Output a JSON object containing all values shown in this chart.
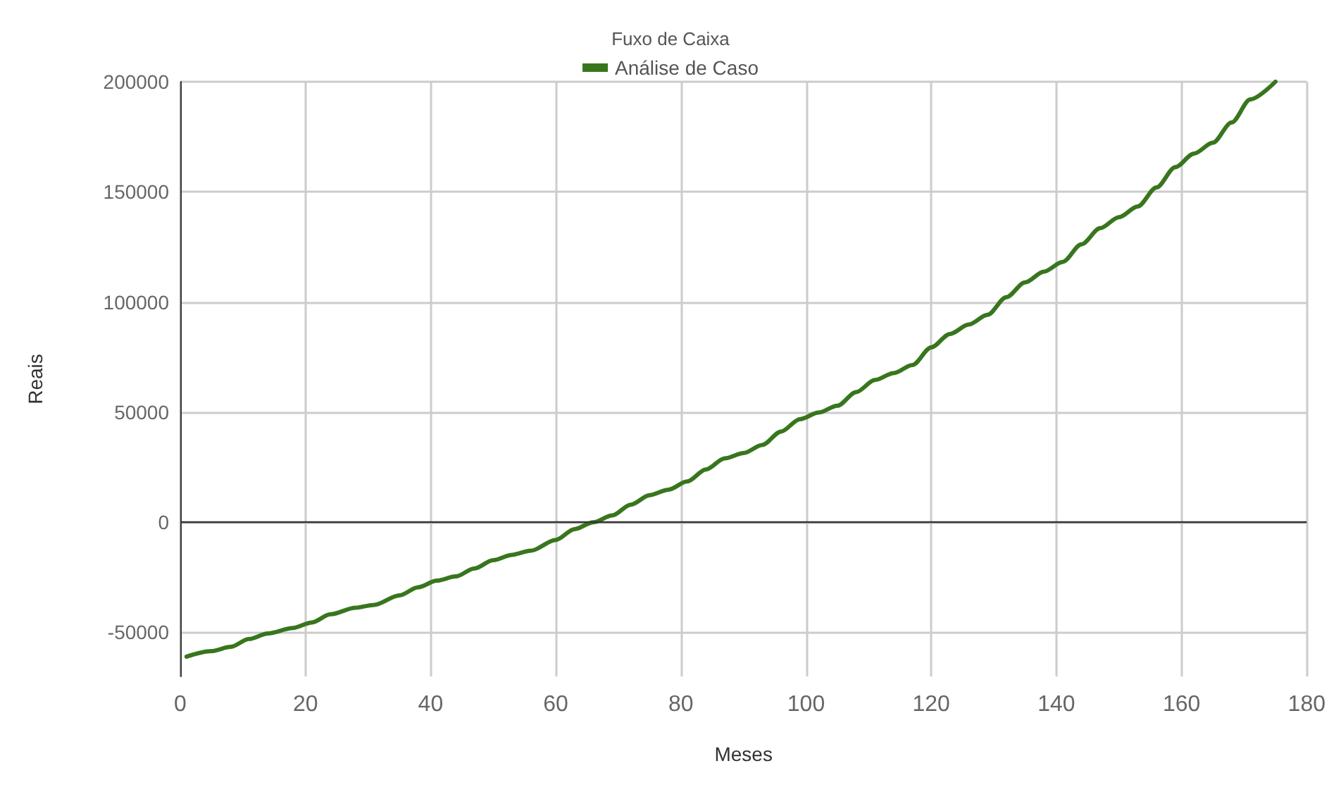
{
  "chart_data": {
    "type": "line",
    "title": "Fuxo de Caixa",
    "xlabel": "Meses",
    "ylabel": "Reais",
    "xlim": [
      0,
      180
    ],
    "xticks": [
      0,
      20,
      40,
      60,
      80,
      100,
      120,
      140,
      160,
      180
    ],
    "ylim": [
      -70000,
      200000
    ],
    "yticks": [
      -50000,
      0,
      50000,
      100000,
      150000,
      200000
    ],
    "grid": true,
    "legend": "top",
    "marker": "none",
    "line_style": "solid",
    "ref_lines": [
      {
        "axis": "y",
        "value": 0,
        "color": "#333333"
      }
    ],
    "series": [
      {
        "name": "Análise de Caso",
        "color": "#38761d",
        "x": [
          1,
          5,
          8,
          11,
          14,
          18,
          21,
          24,
          28,
          31,
          35,
          38,
          41,
          44,
          47,
          50,
          53,
          56,
          60,
          63,
          66,
          69,
          72,
          75,
          78,
          81,
          84,
          87,
          90,
          93,
          96,
          99,
          102,
          105,
          108,
          111,
          114,
          117,
          120,
          123,
          126,
          129,
          132,
          135,
          138,
          141,
          144,
          147,
          150,
          153,
          156,
          159,
          162,
          165,
          168,
          171,
          175
        ],
        "values": [
          -61000,
          -58500,
          -56600,
          -53000,
          -50500,
          -48000,
          -45500,
          -41800,
          -38800,
          -37500,
          -33200,
          -29500,
          -26500,
          -24600,
          -21000,
          -17200,
          -14800,
          -12900,
          -8000,
          -3100,
          0,
          3100,
          8000,
          12300,
          14800,
          18500,
          24000,
          29000,
          31400,
          35100,
          41200,
          46800,
          49800,
          52900,
          59100,
          64600,
          67700,
          71400,
          79400,
          85500,
          89800,
          94200,
          102200,
          108900,
          113800,
          118200,
          126200,
          133500,
          138500,
          143400,
          152000,
          161200,
          167400,
          172300,
          181500,
          192000,
          200000
        ]
      }
    ]
  }
}
